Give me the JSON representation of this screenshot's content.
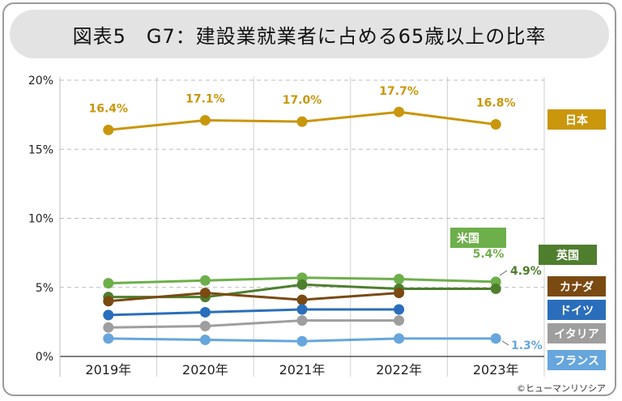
{
  "title": "図表5　G7：建設業就業者に占める65歳以上の比率",
  "copyright": "©ヒューマンリソシア",
  "colors": {
    "japan": "#C9960C",
    "us": "#6DAF4A",
    "uk": "#4E7E2E",
    "canada": "#7A4A12",
    "germany": "#2A6EBB",
    "italy": "#9E9E9E",
    "france": "#66A6DD"
  },
  "chart_data": {
    "type": "line",
    "categories": [
      "2019年",
      "2020年",
      "2021年",
      "2022年",
      "2023年"
    ],
    "y_ticks": [
      "0%",
      "5%",
      "10%",
      "15%",
      "20%"
    ],
    "ylim": [
      0,
      20
    ],
    "grid": true,
    "legend": "right",
    "series": [
      {
        "key": "japan",
        "name": "日本",
        "values": [
          16.4,
          17.1,
          17.0,
          17.7,
          16.8
        ],
        "labels": [
          "16.4%",
          "17.1%",
          "17.0%",
          "17.7%",
          "16.8%"
        ]
      },
      {
        "key": "us",
        "name": "米国",
        "values": [
          5.3,
          5.5,
          5.7,
          5.6,
          5.4
        ],
        "labels": [
          null,
          null,
          null,
          null,
          "5.4%"
        ]
      },
      {
        "key": "uk",
        "name": "英国",
        "values": [
          4.3,
          4.3,
          5.2,
          4.9,
          4.9
        ],
        "labels": [
          null,
          null,
          null,
          null,
          "4.9%"
        ]
      },
      {
        "key": "canada",
        "name": "カナダ",
        "values": [
          4.0,
          4.6,
          4.1,
          4.6,
          null
        ],
        "labels": [
          null,
          null,
          null,
          null,
          null
        ]
      },
      {
        "key": "germany",
        "name": "ドイツ",
        "values": [
          3.0,
          3.2,
          3.4,
          3.4,
          null
        ],
        "labels": [
          null,
          null,
          null,
          null,
          null
        ]
      },
      {
        "key": "italy",
        "name": "イタリア",
        "values": [
          2.1,
          2.2,
          2.6,
          2.6,
          null
        ],
        "labels": [
          null,
          null,
          null,
          null,
          null
        ]
      },
      {
        "key": "france",
        "name": "フランス",
        "values": [
          1.3,
          1.2,
          1.1,
          1.3,
          1.3
        ],
        "labels": [
          null,
          null,
          null,
          null,
          "1.3%"
        ]
      }
    ]
  }
}
